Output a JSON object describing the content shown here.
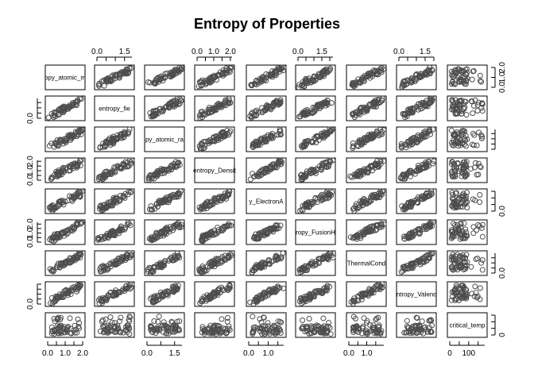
{
  "chart_data": {
    "type": "scatter",
    "title": "Entropy of Properties",
    "variables": [
      "entropy_atomic_mass",
      "entropy_fie",
      "entropy_atomic_radius",
      "entropy_Density",
      "entropy_ElectronAffinity",
      "entropy_FusionHeat",
      "entropy_ThermalConductivity",
      "entropy_Valence",
      "critical_temp"
    ],
    "diagonal_labels": [
      "opy_atomic_m",
      "entropy_fie",
      "py_atomic_ra",
      "entropy_Densit",
      "y_ElectronA",
      "ropy_FusionH",
      "ThermalCond",
      "ntropy_Valenc",
      "critical_temp"
    ],
    "ranges": [
      [
        0,
        2.0
      ],
      [
        0,
        1.9
      ],
      [
        0,
        1.9
      ],
      [
        0,
        2.1
      ],
      [
        0,
        1.8
      ],
      [
        0,
        2.2
      ],
      [
        0,
        1.95
      ],
      [
        0,
        2.0
      ],
      [
        0,
        185
      ]
    ],
    "top_axes": [
      {
        "column": 1,
        "ticks": [
          0.0,
          1.5
        ],
        "labels": [
          "0.0",
          "1.5"
        ]
      },
      {
        "column": 3,
        "ticks": [
          0.0,
          1.0,
          2.0
        ],
        "labels": [
          "0.0",
          "1.0",
          "2.0"
        ]
      },
      {
        "column": 5,
        "ticks": [
          0.0,
          1.5
        ],
        "labels": [
          "0.0",
          "1.5"
        ]
      },
      {
        "column": 7,
        "ticks": [
          0.0,
          1.5
        ],
        "labels": [
          "0.0",
          "1.5"
        ]
      }
    ],
    "bottom_axes": [
      {
        "column": 0,
        "ticks": [
          0.0,
          1.0,
          2.0
        ],
        "labels": [
          "0.0",
          "1.0",
          "2.0"
        ]
      },
      {
        "column": 2,
        "ticks": [
          0.0,
          1.5
        ],
        "labels": [
          "0.0",
          "1.5"
        ]
      },
      {
        "column": 4,
        "ticks": [
          0.0,
          1.0
        ],
        "labels": [
          "0.0",
          "1.0"
        ]
      },
      {
        "column": 6,
        "ticks": [
          0.0,
          1.0
        ],
        "labels": [
          "0.0",
          "1.0"
        ]
      },
      {
        "column": 8,
        "ticks": [
          0,
          100
        ],
        "labels": [
          "0",
          "100"
        ]
      }
    ],
    "left_axes": [
      {
        "row": 1,
        "ticks": [
          0.0
        ],
        "labels": [
          "0.0"
        ]
      },
      {
        "row": 3,
        "ticks": [
          0.0,
          1.0,
          2.0
        ],
        "labels": [
          "0.0",
          "1.0",
          "2.0"
        ]
      },
      {
        "row": 5,
        "ticks": [
          0.0,
          1.0,
          2.0
        ],
        "labels": [
          "0.0",
          "1.0",
          "2.0"
        ]
      },
      {
        "row": 7,
        "ticks": [
          0.0
        ],
        "labels": [
          "0.0"
        ]
      }
    ],
    "right_axes": [
      {
        "row": 0,
        "ticks": [
          0.0,
          1.0,
          2.0
        ],
        "labels": [
          "0.0",
          "1.0",
          "2.0"
        ]
      },
      {
        "row": 2,
        "ticks": [
          0.0,
          0.5,
          1.0,
          1.5
        ],
        "labels": [
          "",
          "",
          "",
          ""
        ]
      },
      {
        "row": 4,
        "ticks": [
          0.0
        ],
        "labels": [
          "0.0"
        ]
      },
      {
        "row": 6,
        "ticks": [
          0.0,
          0.5,
          1.0,
          1.5
        ],
        "labels": [
          "0.0",
          "",
          "",
          ""
        ]
      },
      {
        "row": 8,
        "ticks": [
          0
        ],
        "labels": [
          "0"
        ]
      }
    ],
    "point_color": "#4d4d4d",
    "grid": false,
    "legend": "none"
  }
}
